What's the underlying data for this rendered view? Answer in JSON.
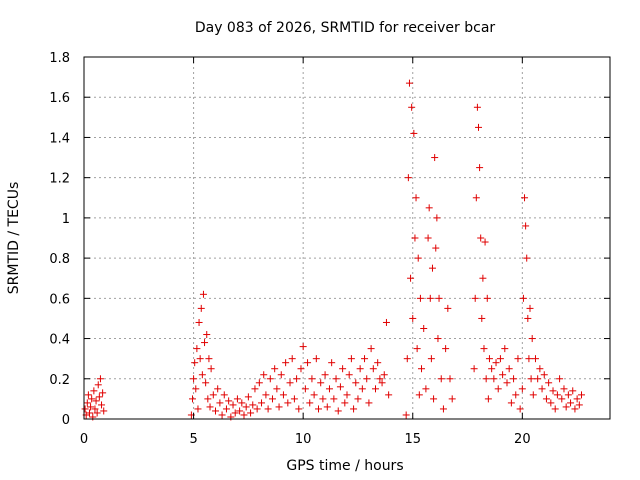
{
  "chart_data": {
    "type": "scatter",
    "title": "Day 083 of 2026, SRMTID for receiver bcar",
    "xlabel": "GPS time / hours",
    "ylabel": "SRMTID / TECUs",
    "xlim": [
      0,
      24
    ],
    "ylim": [
      0,
      1.8
    ],
    "xticks": [
      0,
      5,
      10,
      15,
      20
    ],
    "xtick_labels": [
      "0",
      "5",
      "10",
      "15",
      "20"
    ],
    "yticks": [
      0,
      0.2,
      0.4,
      0.6,
      0.8,
      1.0,
      1.2,
      1.4,
      1.6,
      1.8
    ],
    "ytick_labels": [
      "0",
      "0.2",
      "0.4",
      "0.6",
      "0.8",
      "1",
      "1.2",
      "1.4",
      "1.6",
      "1.8"
    ],
    "grid": true,
    "marker": "+",
    "color": "#e00000",
    "series": [
      {
        "name": "SRMTID",
        "points": [
          [
            0.05,
            0.05
          ],
          [
            0.1,
            0.02
          ],
          [
            0.15,
            0.08
          ],
          [
            0.2,
            0.12
          ],
          [
            0.25,
            0.03
          ],
          [
            0.3,
            0.06
          ],
          [
            0.35,
            0.1
          ],
          [
            0.4,
            0.01
          ],
          [
            0.45,
            0.14
          ],
          [
            0.5,
            0.05
          ],
          [
            0.55,
            0.09
          ],
          [
            0.6,
            0.03
          ],
          [
            0.65,
            0.17
          ],
          [
            0.7,
            0.11
          ],
          [
            0.75,
            0.2
          ],
          [
            0.8,
            0.07
          ],
          [
            0.85,
            0.13
          ],
          [
            0.9,
            0.04
          ],
          [
            4.9,
            0.02
          ],
          [
            4.95,
            0.1
          ],
          [
            5.0,
            0.2
          ],
          [
            5.05,
            0.28
          ],
          [
            5.1,
            0.15
          ],
          [
            5.15,
            0.35
          ],
          [
            5.2,
            0.05
          ],
          [
            5.25,
            0.48
          ],
          [
            5.3,
            0.3
          ],
          [
            5.35,
            0.55
          ],
          [
            5.4,
            0.22
          ],
          [
            5.45,
            0.62
          ],
          [
            5.5,
            0.38
          ],
          [
            5.55,
            0.18
          ],
          [
            5.6,
            0.42
          ],
          [
            5.65,
            0.1
          ],
          [
            5.7,
            0.3
          ],
          [
            5.75,
            0.06
          ],
          [
            5.8,
            0.25
          ],
          [
            5.9,
            0.12
          ],
          [
            6.0,
            0.04
          ],
          [
            6.1,
            0.15
          ],
          [
            6.2,
            0.08
          ],
          [
            6.3,
            0.02
          ],
          [
            6.4,
            0.12
          ],
          [
            6.5,
            0.05
          ],
          [
            6.6,
            0.09
          ],
          [
            6.7,
            0.01
          ],
          [
            6.8,
            0.07
          ],
          [
            6.9,
            0.03
          ],
          [
            7.0,
            0.1
          ],
          [
            7.1,
            0.04
          ],
          [
            7.2,
            0.08
          ],
          [
            7.3,
            0.02
          ],
          [
            7.4,
            0.06
          ],
          [
            7.5,
            0.11
          ],
          [
            7.6,
            0.03
          ],
          [
            7.7,
            0.07
          ],
          [
            7.8,
            0.15
          ],
          [
            7.9,
            0.05
          ],
          [
            8.0,
            0.18
          ],
          [
            8.1,
            0.08
          ],
          [
            8.2,
            0.22
          ],
          [
            8.3,
            0.12
          ],
          [
            8.4,
            0.05
          ],
          [
            8.5,
            0.2
          ],
          [
            8.6,
            0.1
          ],
          [
            8.7,
            0.25
          ],
          [
            8.8,
            0.15
          ],
          [
            8.9,
            0.06
          ],
          [
            9.0,
            0.22
          ],
          [
            9.1,
            0.12
          ],
          [
            9.2,
            0.28
          ],
          [
            9.3,
            0.08
          ],
          [
            9.4,
            0.18
          ],
          [
            9.5,
            0.3
          ],
          [
            9.6,
            0.1
          ],
          [
            9.7,
            0.2
          ],
          [
            9.8,
            0.05
          ],
          [
            9.9,
            0.25
          ],
          [
            10.0,
            0.36
          ],
          [
            10.1,
            0.15
          ],
          [
            10.2,
            0.28
          ],
          [
            10.3,
            0.08
          ],
          [
            10.4,
            0.2
          ],
          [
            10.5,
            0.12
          ],
          [
            10.6,
            0.3
          ],
          [
            10.7,
            0.05
          ],
          [
            10.8,
            0.18
          ],
          [
            10.9,
            0.1
          ],
          [
            11.0,
            0.22
          ],
          [
            11.1,
            0.06
          ],
          [
            11.2,
            0.15
          ],
          [
            11.3,
            0.28
          ],
          [
            11.4,
            0.1
          ],
          [
            11.5,
            0.2
          ],
          [
            11.6,
            0.04
          ],
          [
            11.7,
            0.16
          ],
          [
            11.8,
            0.25
          ],
          [
            11.9,
            0.08
          ],
          [
            12.0,
            0.12
          ],
          [
            12.1,
            0.22
          ],
          [
            12.2,
            0.3
          ],
          [
            12.3,
            0.05
          ],
          [
            12.4,
            0.18
          ],
          [
            12.5,
            0.1
          ],
          [
            12.6,
            0.25
          ],
          [
            12.7,
            0.15
          ],
          [
            12.8,
            0.3
          ],
          [
            12.9,
            0.2
          ],
          [
            13.0,
            0.08
          ],
          [
            13.1,
            0.35
          ],
          [
            13.2,
            0.25
          ],
          [
            13.3,
            0.15
          ],
          [
            13.4,
            0.28
          ],
          [
            13.5,
            0.2
          ],
          [
            13.6,
            0.18
          ],
          [
            13.7,
            0.22
          ],
          [
            13.8,
            0.48
          ],
          [
            13.9,
            0.12
          ],
          [
            14.7,
            0.02
          ],
          [
            14.75,
            0.3
          ],
          [
            14.8,
            1.2
          ],
          [
            14.85,
            1.67
          ],
          [
            14.9,
            0.7
          ],
          [
            14.95,
            1.55
          ],
          [
            15.0,
            0.5
          ],
          [
            15.05,
            1.42
          ],
          [
            15.1,
            0.9
          ],
          [
            15.15,
            1.1
          ],
          [
            15.2,
            0.35
          ],
          [
            15.25,
            0.8
          ],
          [
            15.3,
            0.12
          ],
          [
            15.35,
            0.6
          ],
          [
            15.4,
            0.25
          ],
          [
            15.5,
            0.45
          ],
          [
            15.6,
            0.15
          ],
          [
            15.7,
            0.9
          ],
          [
            15.75,
            1.05
          ],
          [
            15.8,
            0.6
          ],
          [
            15.85,
            0.3
          ],
          [
            15.9,
            0.75
          ],
          [
            15.95,
            0.1
          ],
          [
            16.0,
            1.3
          ],
          [
            16.05,
            0.85
          ],
          [
            16.1,
            1.0
          ],
          [
            16.15,
            0.4
          ],
          [
            16.2,
            0.6
          ],
          [
            16.3,
            0.2
          ],
          [
            16.4,
            0.05
          ],
          [
            16.5,
            0.35
          ],
          [
            16.6,
            0.55
          ],
          [
            16.7,
            0.2
          ],
          [
            16.8,
            0.1
          ],
          [
            17.8,
            0.25
          ],
          [
            17.85,
            0.6
          ],
          [
            17.9,
            1.1
          ],
          [
            17.95,
            1.55
          ],
          [
            18.0,
            1.45
          ],
          [
            18.05,
            1.25
          ],
          [
            18.1,
            0.9
          ],
          [
            18.15,
            0.5
          ],
          [
            18.2,
            0.7
          ],
          [
            18.25,
            0.35
          ],
          [
            18.3,
            0.88
          ],
          [
            18.35,
            0.2
          ],
          [
            18.4,
            0.6
          ],
          [
            18.45,
            0.1
          ],
          [
            18.5,
            0.3
          ],
          [
            18.6,
            0.25
          ],
          [
            18.7,
            0.2
          ],
          [
            18.8,
            0.28
          ],
          [
            18.9,
            0.15
          ],
          [
            19.0,
            0.3
          ],
          [
            19.1,
            0.22
          ],
          [
            19.2,
            0.35
          ],
          [
            19.3,
            0.18
          ],
          [
            19.4,
            0.25
          ],
          [
            19.5,
            0.08
          ],
          [
            19.6,
            0.2
          ],
          [
            19.7,
            0.12
          ],
          [
            19.8,
            0.3
          ],
          [
            19.9,
            0.05
          ],
          [
            20.0,
            0.15
          ],
          [
            20.05,
            0.6
          ],
          [
            20.1,
            1.1
          ],
          [
            20.15,
            0.96
          ],
          [
            20.2,
            0.8
          ],
          [
            20.25,
            0.5
          ],
          [
            20.3,
            0.3
          ],
          [
            20.35,
            0.55
          ],
          [
            20.4,
            0.2
          ],
          [
            20.45,
            0.4
          ],
          [
            20.5,
            0.12
          ],
          [
            20.6,
            0.3
          ],
          [
            20.7,
            0.2
          ],
          [
            20.8,
            0.25
          ],
          [
            20.9,
            0.15
          ],
          [
            21.0,
            0.22
          ],
          [
            21.1,
            0.1
          ],
          [
            21.2,
            0.18
          ],
          [
            21.3,
            0.08
          ],
          [
            21.4,
            0.14
          ],
          [
            21.5,
            0.05
          ],
          [
            21.6,
            0.12
          ],
          [
            21.7,
            0.2
          ],
          [
            21.8,
            0.1
          ],
          [
            21.9,
            0.15
          ],
          [
            22.0,
            0.06
          ],
          [
            22.1,
            0.12
          ],
          [
            22.2,
            0.08
          ],
          [
            22.3,
            0.14
          ],
          [
            22.4,
            0.05
          ],
          [
            22.5,
            0.1
          ],
          [
            22.6,
            0.07
          ],
          [
            22.7,
            0.12
          ]
        ]
      }
    ]
  }
}
